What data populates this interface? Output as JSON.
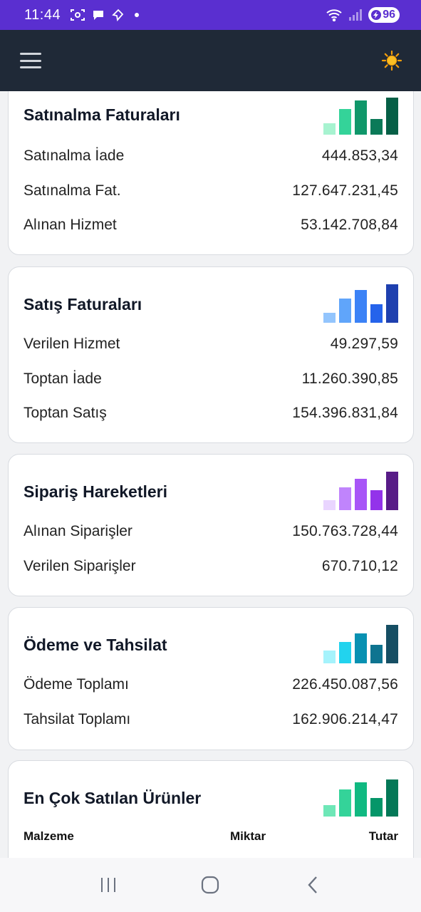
{
  "status_bar": {
    "time": "11:44",
    "battery": "96",
    "icons": [
      "screenshot-icon",
      "chat-bubble-icon",
      "location-icon",
      "notification-dot-icon",
      "wifi-icon",
      "signal-icon",
      "battery-icon"
    ]
  },
  "app_bar": {
    "menu_icon": "hamburger-menu-icon",
    "theme_icon": "sun-icon"
  },
  "cards": [
    {
      "title": "Satınalma Faturaları",
      "bar_colors": [
        "#a7f3d0",
        "#34d399",
        "#10976a",
        "#0b7a58",
        "#065f46"
      ],
      "rows": [
        {
          "label": "Satınalma İade",
          "value": "444.853,34"
        },
        {
          "label": "Satınalma Fat.",
          "value": "127.647.231,45"
        },
        {
          "label": "Alınan Hizmet",
          "value": "53.142.708,84"
        }
      ]
    },
    {
      "title": "Satış Faturaları",
      "bar_colors": [
        "#93c5fd",
        "#60a5fa",
        "#3b82f6",
        "#2563eb",
        "#1e40af"
      ],
      "rows": [
        {
          "label": "Verilen Hizmet",
          "value": "49.297,59"
        },
        {
          "label": "Toptan İade",
          "value": "11.260.390,85"
        },
        {
          "label": "Toptan Satış",
          "value": "154.396.831,84"
        }
      ]
    },
    {
      "title": "Sipariş Hareketleri",
      "bar_colors": [
        "#e9d5ff",
        "#c084fc",
        "#a855f7",
        "#9333ea",
        "#581c87"
      ],
      "rows": [
        {
          "label": "Alınan Siparişler",
          "value": "150.763.728,44"
        },
        {
          "label": "Verilen Siparişler",
          "value": "670.710,12"
        }
      ]
    },
    {
      "title": "Ödeme ve Tahsilat",
      "bar_colors": [
        "#a5f3fc",
        "#22d3ee",
        "#0891b2",
        "#0e7490",
        "#164e63"
      ],
      "rows": [
        {
          "label": "Ödeme Toplamı",
          "value": "226.450.087,56"
        },
        {
          "label": "Tahsilat Toplamı",
          "value": "162.906.214,47"
        }
      ]
    },
    {
      "title": "En Çok Satılan Ürünler",
      "bar_colors": [
        "#6ee7b7",
        "#34d399",
        "#10b981",
        "#059669",
        "#047857"
      ],
      "columns": [
        "Malzeme",
        "Miktar",
        "Tutar"
      ]
    }
  ],
  "nav_bar": {
    "recents_icon": "recents-icon",
    "home_icon": "home-icon",
    "back_icon": "back-icon"
  }
}
